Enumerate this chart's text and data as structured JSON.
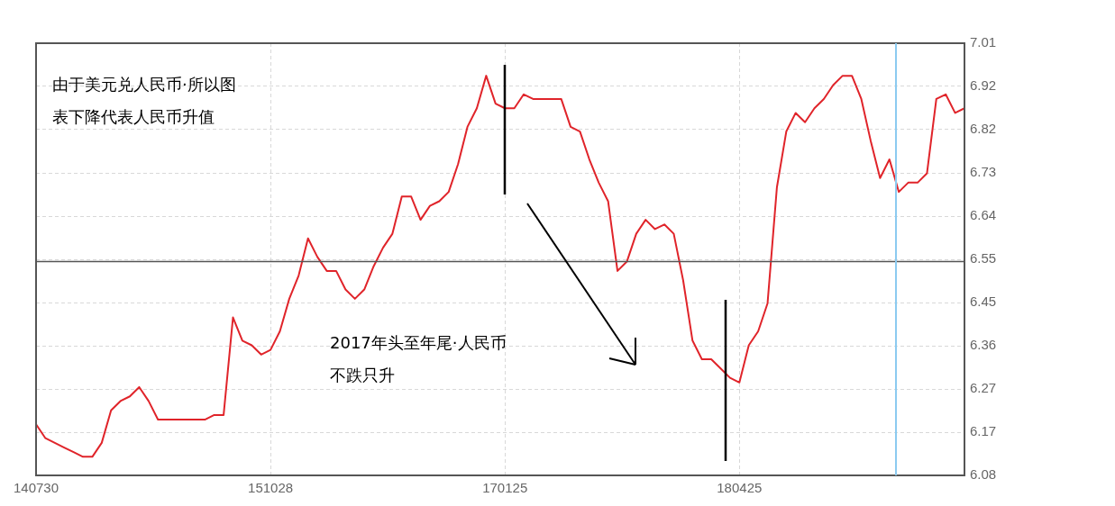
{
  "chart_data": {
    "type": "line",
    "categories": [
      "140730",
      null,
      null,
      null,
      null,
      null,
      null,
      null,
      null,
      null,
      null,
      null,
      null,
      null,
      null,
      null,
      null,
      null,
      null,
      null,
      null,
      null,
      null,
      null,
      null,
      "151028",
      null,
      null,
      null,
      null,
      null,
      null,
      null,
      null,
      null,
      null,
      null,
      null,
      null,
      null,
      null,
      null,
      null,
      null,
      null,
      null,
      null,
      null,
      null,
      null,
      "170125",
      null,
      null,
      null,
      null,
      null,
      null,
      null,
      null,
      null,
      null,
      null,
      null,
      null,
      null,
      null,
      null,
      null,
      null,
      null,
      null,
      null,
      null,
      null,
      null,
      "180425",
      null,
      null,
      null,
      null,
      null,
      null,
      null,
      null,
      null,
      null,
      null,
      null,
      null,
      null,
      null,
      null,
      null,
      null,
      null,
      null,
      null,
      null,
      null,
      null
    ],
    "series": [
      {
        "color": "#e0242a",
        "values": [
          6.19,
          6.16,
          6.15,
          6.14,
          6.13,
          6.12,
          6.12,
          6.15,
          6.22,
          6.24,
          6.25,
          6.27,
          6.24,
          6.2,
          6.2,
          6.2,
          6.2,
          6.2,
          6.2,
          6.21,
          6.21,
          6.42,
          6.37,
          6.36,
          6.34,
          6.35,
          6.39,
          6.46,
          6.51,
          6.59,
          6.55,
          6.52,
          6.52,
          6.48,
          6.46,
          6.48,
          6.53,
          6.57,
          6.6,
          6.68,
          6.68,
          6.63,
          6.66,
          6.67,
          6.69,
          6.75,
          6.83,
          6.87,
          6.94,
          6.88,
          6.87,
          6.87,
          6.9,
          6.89,
          6.89,
          6.89,
          6.89,
          6.83,
          6.82,
          6.76,
          6.71,
          6.67,
          6.52,
          6.54,
          6.6,
          6.63,
          6.61,
          6.62,
          6.6,
          6.5,
          6.37,
          6.33,
          6.33,
          6.31,
          6.29,
          6.28,
          6.36,
          6.39,
          6.45,
          6.7,
          6.82,
          6.86,
          6.84,
          6.87,
          6.89,
          6.92,
          6.94,
          6.94,
          6.89,
          6.8,
          6.72,
          6.76,
          6.69,
          6.71,
          6.71,
          6.73,
          6.89,
          6.9,
          6.86,
          6.87
        ]
      }
    ],
    "ylim": [
      6.08,
      7.01
    ],
    "yticks": [
      {
        "value": 6.08,
        "label": "6.08"
      },
      {
        "value": 6.173,
        "label": "6.17"
      },
      {
        "value": 6.266,
        "label": "6.27"
      },
      {
        "value": 6.359,
        "label": "6.36"
      },
      {
        "value": 6.452,
        "label": "6.45"
      },
      {
        "value": 6.545,
        "label": "6.55"
      },
      {
        "value": 6.638,
        "label": "6.64"
      },
      {
        "value": 6.731,
        "label": "6.73"
      },
      {
        "value": 6.824,
        "label": "6.82"
      },
      {
        "value": 6.917,
        "label": "6.92"
      },
      {
        "value": 7.01,
        "label": "7.01"
      }
    ],
    "grid": true,
    "marker": "none",
    "ref_lines": [
      {
        "axis": "y",
        "value": 6.54,
        "color": "#555555"
      }
    ],
    "annotations": [
      "由于美元兑人民币·所以图表下降代表人民币升值",
      "2017年头至年尾·人民币不跌只升"
    ]
  }
}
